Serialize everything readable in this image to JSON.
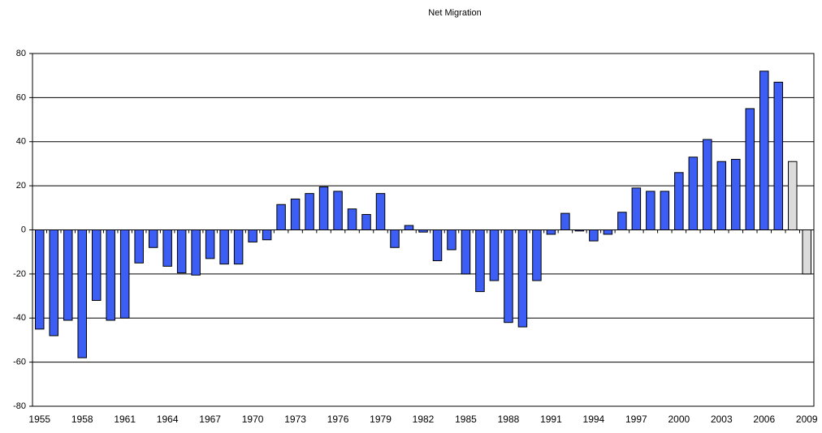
{
  "chart_data": {
    "type": "bar",
    "title": "Net Migration",
    "categories": [
      "1955",
      null,
      null,
      "1958",
      null,
      null,
      "1961",
      null,
      null,
      "1964",
      null,
      null,
      "1967",
      null,
      null,
      "1970",
      null,
      null,
      "1973",
      null,
      null,
      "1976",
      null,
      null,
      "1979",
      null,
      null,
      "1982",
      null,
      null,
      "1985",
      null,
      null,
      "1988",
      null,
      null,
      "1991",
      null,
      null,
      "1994",
      null,
      null,
      "1997",
      null,
      null,
      "2000",
      null,
      null,
      "2003",
      null,
      null,
      "2006",
      null,
      null,
      "2009"
    ],
    "values": [
      -45,
      -48,
      -41,
      -58,
      -32,
      -41,
      -40,
      -15,
      -8,
      -16.5,
      -19.5,
      -20.5,
      -13,
      -15.5,
      -15.5,
      -5.5,
      -4.5,
      11.5,
      14,
      16.5,
      19.5,
      17.5,
      9.5,
      7,
      16.5,
      -8,
      2,
      -1,
      -14,
      -9,
      -20,
      -28,
      -23,
      -42,
      -44,
      -23,
      -2,
      7.5,
      -0.5,
      -5,
      -2,
      8,
      19,
      17.5,
      17.5,
      26,
      33,
      41,
      31,
      32,
      55,
      72,
      67,
      31,
      -20
    ],
    "colors": [
      "#3d5ef5",
      "#3d5ef5",
      "#3d5ef5",
      "#3d5ef5",
      "#3d5ef5",
      "#3d5ef5",
      "#3d5ef5",
      "#3d5ef5",
      "#3d5ef5",
      "#3d5ef5",
      "#3d5ef5",
      "#3d5ef5",
      "#3d5ef5",
      "#3d5ef5",
      "#3d5ef5",
      "#3d5ef5",
      "#3d5ef5",
      "#3d5ef5",
      "#3d5ef5",
      "#3d5ef5",
      "#3d5ef5",
      "#3d5ef5",
      "#3d5ef5",
      "#3d5ef5",
      "#3d5ef5",
      "#3d5ef5",
      "#3d5ef5",
      "#3d5ef5",
      "#3d5ef5",
      "#3d5ef5",
      "#3d5ef5",
      "#3d5ef5",
      "#3d5ef5",
      "#3d5ef5",
      "#3d5ef5",
      "#3d5ef5",
      "#3d5ef5",
      "#3d5ef5",
      "#3d5ef5",
      "#3d5ef5",
      "#3d5ef5",
      "#3d5ef5",
      "#3d5ef5",
      "#3d5ef5",
      "#3d5ef5",
      "#3d5ef5",
      "#3d5ef5",
      "#3d5ef5",
      "#3d5ef5",
      "#3d5ef5",
      "#3d5ef5",
      "#3d5ef5",
      "#3d5ef5",
      "#dcdcdc",
      "#dcdcdc"
    ],
    "ylim": [
      -80,
      80
    ],
    "yticks": [
      -80,
      -60,
      -40,
      -20,
      0,
      20,
      40,
      60,
      80
    ],
    "grid": true
  }
}
